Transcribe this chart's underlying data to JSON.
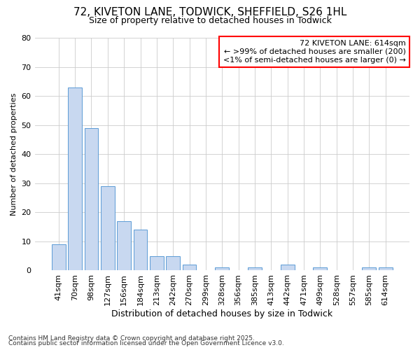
{
  "title_line1": "72, KIVETON LANE, TODWICK, SHEFFIELD, S26 1HL",
  "title_line2": "Size of property relative to detached houses in Todwick",
  "xlabel": "Distribution of detached houses by size in Todwick",
  "ylabel": "Number of detached properties",
  "categories": [
    "41sqm",
    "70sqm",
    "98sqm",
    "127sqm",
    "156sqm",
    "184sqm",
    "213sqm",
    "242sqm",
    "270sqm",
    "299sqm",
    "328sqm",
    "356sqm",
    "385sqm",
    "413sqm",
    "442sqm",
    "471sqm",
    "499sqm",
    "528sqm",
    "557sqm",
    "585sqm",
    "614sqm"
  ],
  "values": [
    9,
    63,
    49,
    29,
    17,
    14,
    5,
    5,
    2,
    0,
    1,
    0,
    1,
    0,
    2,
    0,
    1,
    0,
    0,
    1,
    1
  ],
  "bar_color": "#c8d8f0",
  "bar_edge_color": "#5b9bd5",
  "ylim": [
    0,
    80
  ],
  "yticks": [
    0,
    10,
    20,
    30,
    40,
    50,
    60,
    70,
    80
  ],
  "highlight_bar_index": 20,
  "annotation_text_line1": "72 KIVETON LANE: 614sqm",
  "annotation_text_line2": "← >99% of detached houses are smaller (200)",
  "annotation_text_line3": "<1% of semi-detached houses are larger (0) →",
  "footnote_line1": "Contains HM Land Registry data © Crown copyright and database right 2025.",
  "footnote_line2": "Contains public sector information licensed under the Open Government Licence v3.0.",
  "background_color": "#ffffff",
  "grid_color": "#cccccc",
  "title_fontsize": 11,
  "subtitle_fontsize": 9,
  "xlabel_fontsize": 9,
  "ylabel_fontsize": 8,
  "tick_fontsize": 8,
  "annotation_fontsize": 8,
  "footnote_fontsize": 6.5
}
